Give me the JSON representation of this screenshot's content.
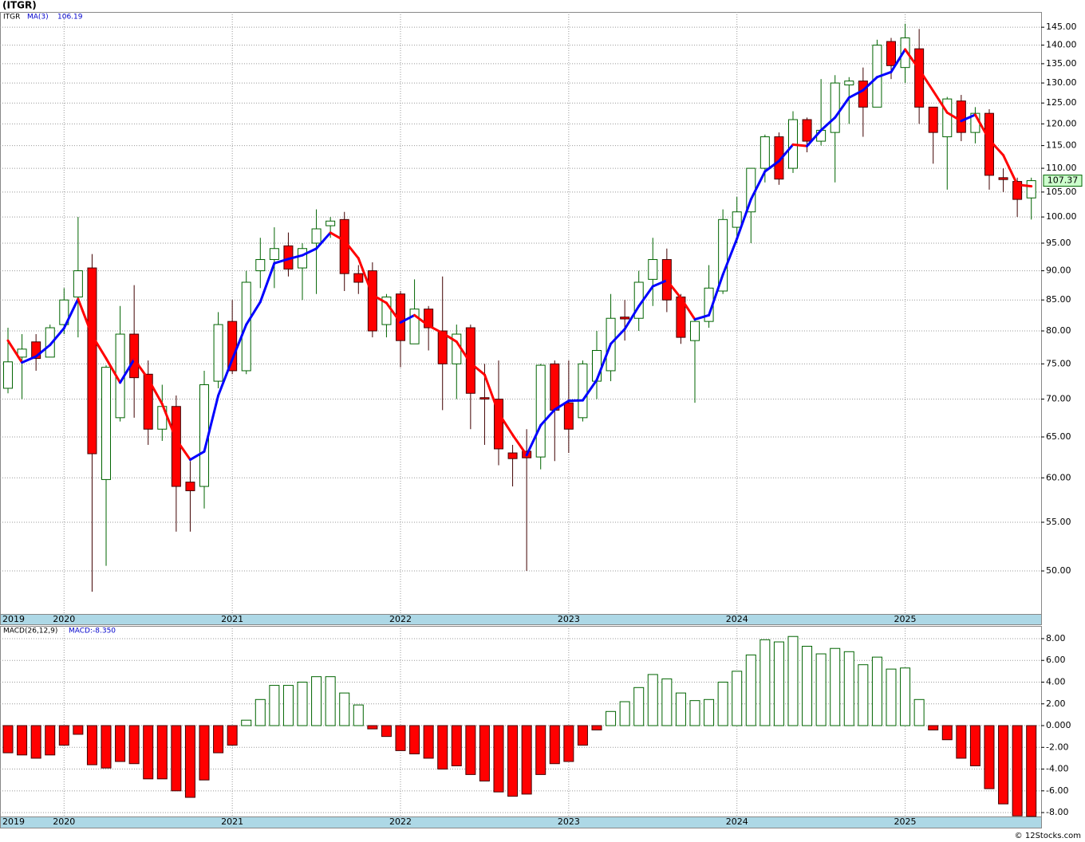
{
  "chart_data": [
    {
      "type": "candlestick",
      "title": "(ITGR)",
      "symbol": "ITGR",
      "log": true,
      "grid": true,
      "up_color": "#ffffff",
      "up_stroke": "#006400",
      "down_color": "#ff0000",
      "down_stroke": "#400000",
      "open": [
        71.5,
        76,
        78.3,
        76,
        81,
        85.5,
        90.5,
        59.8,
        67.5,
        79.5,
        73.5,
        66,
        69,
        59.5,
        59,
        72.5,
        81.5,
        74,
        90,
        92,
        94.5,
        90.5,
        95,
        98.3,
        99.5,
        89.5,
        90,
        81,
        86,
        78,
        83.5,
        80,
        75,
        80.5,
        70.2,
        70,
        63,
        63.2,
        62.5,
        75,
        69.5,
        67.5,
        72.5,
        74,
        82.2,
        82,
        88.5,
        92,
        85.5,
        78.5,
        81.5,
        86.5,
        98,
        101,
        110,
        117,
        110,
        121,
        116,
        118,
        129.5,
        130.5,
        124,
        141,
        134,
        139,
        124,
        117,
        125.5,
        118,
        122.5,
        108,
        107.2,
        103.8
      ],
      "high": [
        80.5,
        79.5,
        79.5,
        81,
        87,
        100,
        93,
        74.8,
        84,
        87.5,
        75.5,
        72,
        70.5,
        62,
        74,
        83,
        85,
        90,
        96,
        98,
        97,
        95,
        101.5,
        100,
        101,
        91,
        91.5,
        86,
        86.5,
        88.5,
        84,
        89,
        81,
        81,
        75,
        75.5,
        64,
        66,
        75,
        75.5,
        75.5,
        75.5,
        80,
        86,
        85,
        90,
        96,
        94,
        86,
        82,
        91,
        101.5,
        104,
        110,
        117.5,
        118,
        123,
        121.5,
        131,
        132,
        131.5,
        134,
        141.5,
        142,
        146,
        144.5,
        124,
        126.5,
        127,
        124,
        123.5,
        110,
        108,
        108
      ],
      "low": [
        70.8,
        70,
        74,
        76,
        79.5,
        79,
        48,
        50.5,
        67,
        67.5,
        64,
        64.5,
        54,
        54,
        56.5,
        71.5,
        73.5,
        73.5,
        87,
        87,
        89,
        85,
        86,
        96,
        86.5,
        86,
        79,
        79,
        74.5,
        78,
        77,
        68.5,
        70,
        66,
        64,
        61.5,
        59,
        50,
        61,
        62,
        63,
        67,
        70,
        72.5,
        78.5,
        80,
        84,
        83,
        78,
        69.5,
        80.5,
        86,
        95,
        95,
        107,
        106.5,
        109,
        113.5,
        115,
        107,
        120,
        117,
        124,
        131,
        130,
        120,
        111,
        105.5,
        116,
        115.5,
        105.5,
        105,
        100,
        99.5
      ],
      "close": [
        75.3,
        77.2,
        75.8,
        80.5,
        85,
        90,
        62.9,
        74.5,
        79.5,
        73,
        66,
        69,
        59,
        58.5,
        72,
        81,
        74,
        88,
        92,
        94,
        90.3,
        94,
        97.7,
        99.2,
        89.5,
        88,
        80,
        85.5,
        78.5,
        83.5,
        80.5,
        75,
        79.5,
        70.8,
        70,
        63.5,
        62.3,
        62.4,
        74.8,
        68.5,
        66,
        75,
        77,
        82,
        81.9,
        88,
        92,
        85,
        79,
        81.5,
        87,
        99.5,
        101,
        110,
        117,
        107.7,
        121,
        116,
        118.5,
        130,
        130.5,
        124,
        140,
        134.5,
        142,
        124,
        118,
        126,
        118,
        122.5,
        108.5,
        107.6,
        103.5,
        107.37
      ],
      "ma": {
        "name": "MA(3)",
        "up_color": "#0000ff",
        "down_color": "#ff0000",
        "values": [
          78.5,
          75.2,
          76.1,
          77.83,
          80.43,
          85.17,
          79.3,
          75.8,
          72.3,
          75.67,
          72.83,
          69.33,
          64.67,
          62.17,
          63.17,
          70.5,
          75.67,
          81,
          84.67,
          91.33,
          92.1,
          92.77,
          94,
          96.97,
          95.47,
          92.23,
          85.83,
          84.5,
          81.33,
          82.5,
          80.83,
          79.67,
          78.33,
          75.1,
          73.43,
          68.1,
          65.27,
          62.73,
          66.5,
          68.57,
          69.77,
          69.83,
          72.67,
          78,
          80.3,
          83.97,
          87.3,
          88.33,
          85.33,
          81.83,
          82.5,
          89.33,
          95.83,
          103.5,
          109.33,
          111.57,
          115.23,
          114.9,
          118.5,
          121.5,
          126.33,
          128.17,
          131.5,
          132.83,
          138.83,
          133.5,
          128,
          122.67,
          120.67,
          122.17,
          116.33,
          112.87,
          106.53,
          106.19
        ]
      },
      "xlim": [
        -0.57,
        73.7
      ],
      "xticks": [
        {
          "value": -0.57,
          "label": "2019"
        },
        {
          "value": 4,
          "label": "2020"
        },
        {
          "value": 16,
          "label": "2021"
        },
        {
          "value": 28,
          "label": "2022"
        },
        {
          "value": 40,
          "label": "2023"
        },
        {
          "value": 52,
          "label": "2024"
        },
        {
          "value": 64,
          "label": "2025"
        }
      ],
      "ylim": [
        45.96,
        149.4
      ],
      "yticks": [
        {
          "value": 50,
          "label": "50.00"
        },
        {
          "value": 55,
          "label": "55.00"
        },
        {
          "value": 60,
          "label": "60.00"
        },
        {
          "value": 65,
          "label": "65.00"
        },
        {
          "value": 70,
          "label": "70.00"
        },
        {
          "value": 75,
          "label": "75.00"
        },
        {
          "value": 80,
          "label": "80.00"
        },
        {
          "value": 85,
          "label": "85.00"
        },
        {
          "value": 90,
          "label": "90.00"
        },
        {
          "value": 95,
          "label": "95.00"
        },
        {
          "value": 100,
          "label": "100.00"
        },
        {
          "value": 105,
          "label": "105.00"
        },
        {
          "value": 110,
          "label": "110.00"
        },
        {
          "value": 115,
          "label": "115.00"
        },
        {
          "value": 120,
          "label": "120.00"
        },
        {
          "value": 125,
          "label": "125.00"
        },
        {
          "value": 130,
          "label": "130.00"
        },
        {
          "value": 135,
          "label": "135.00"
        },
        {
          "value": 140,
          "label": "140.00"
        },
        {
          "value": 145,
          "label": "145.00"
        }
      ]
    },
    {
      "type": "bar",
      "title": "MACD(26,12,9)",
      "name": "MACD",
      "value_label": "MACD:-8.350",
      "grid": true,
      "up_color": "#ffffff",
      "up_stroke": "#006400",
      "down_color": "#ff0000",
      "down_stroke": "#400000",
      "values": [
        -2.5,
        -2.7,
        -3.0,
        -2.7,
        -1.8,
        -0.8,
        -3.6,
        -3.9,
        -3.3,
        -3.5,
        -4.9,
        -4.9,
        -6.0,
        -6.6,
        -5.0,
        -2.5,
        -1.8,
        0.5,
        2.4,
        3.7,
        3.7,
        4.0,
        4.5,
        4.5,
        3.0,
        1.9,
        -0.3,
        -1.0,
        -2.3,
        -2.6,
        -3.0,
        -4.0,
        -3.7,
        -4.5,
        -5.1,
        -6.1,
        -6.5,
        -6.3,
        -4.5,
        -3.5,
        -3.3,
        -1.8,
        -0.4,
        1.3,
        2.2,
        3.5,
        4.7,
        4.3,
        3.0,
        2.3,
        2.4,
        4.0,
        5.0,
        6.5,
        7.9,
        7.7,
        8.2,
        7.3,
        6.6,
        7.1,
        6.8,
        5.6,
        6.3,
        5.2,
        5.3,
        2.4,
        -0.4,
        -1.3,
        -3.0,
        -3.7,
        -5.8,
        -7.2,
        -8.3,
        -8.35
      ],
      "xlim": [
        -0.57,
        73.7
      ],
      "xticks": [
        {
          "value": -0.57,
          "label": "2019"
        },
        {
          "value": 4,
          "label": "2020"
        },
        {
          "value": 16,
          "label": "2021"
        },
        {
          "value": 28,
          "label": "2022"
        },
        {
          "value": 40,
          "label": "2023"
        },
        {
          "value": 52,
          "label": "2024"
        },
        {
          "value": 64,
          "label": "2025"
        }
      ],
      "ylim": [
        -8.36,
        9.17
      ],
      "yticks": [
        {
          "value": -8,
          "label": "-8.00"
        },
        {
          "value": -6,
          "label": "-6.00"
        },
        {
          "value": -4,
          "label": "-4.00"
        },
        {
          "value": -2,
          "label": "-2.00"
        },
        {
          "value": 0,
          "label": "0.000"
        },
        {
          "value": 2,
          "label": "2.00"
        },
        {
          "value": 4,
          "label": "4.00"
        },
        {
          "value": 6,
          "label": "6.00"
        },
        {
          "value": 8,
          "label": "8.00"
        }
      ]
    }
  ],
  "footer": "© 12Stocks.com"
}
